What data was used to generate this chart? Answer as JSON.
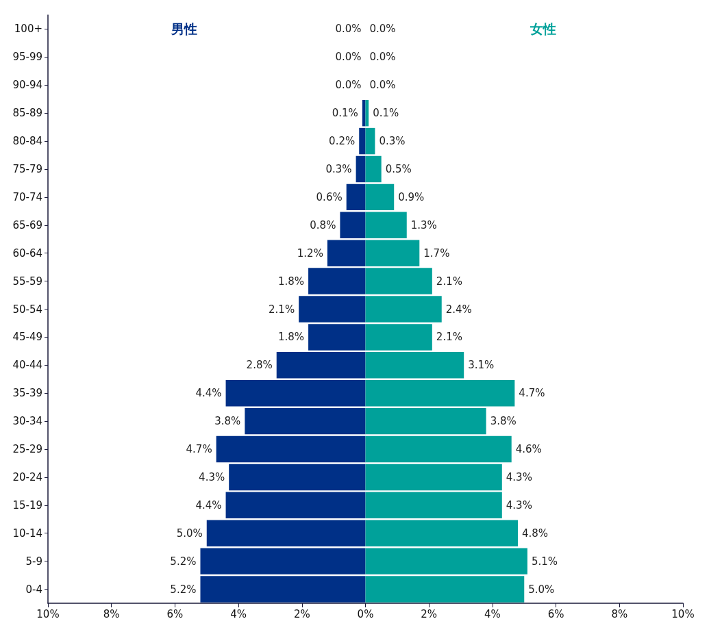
{
  "chart_data": {
    "type": "bar",
    "orientation": "horizontal",
    "categories": [
      "100+",
      "95-99",
      "90-94",
      "85-89",
      "80-84",
      "75-79",
      "70-74",
      "65-69",
      "60-64",
      "55-59",
      "50-54",
      "45-49",
      "40-44",
      "35-39",
      "30-34",
      "25-29",
      "20-24",
      "15-19",
      "10-14",
      "5-9",
      "0-4"
    ],
    "series": [
      {
        "name": "男性",
        "color": "#003087",
        "values": [
          0.0,
          0.0,
          0.0,
          0.1,
          0.2,
          0.3,
          0.6,
          0.8,
          1.2,
          1.8,
          2.1,
          1.8,
          2.8,
          4.4,
          3.8,
          4.7,
          4.3,
          4.4,
          5.0,
          5.2,
          5.2
        ],
        "base": [
          null,
          null,
          null,
          -0.1,
          -0.2,
          -0.3,
          -0.6,
          -0.8,
          -1.2,
          -1.8,
          -2.1,
          -1.8,
          -2.8,
          -4.4,
          -3.8,
          -4.7,
          -4.3,
          -4.4,
          -5.0,
          -5.2,
          -5.2
        ],
        "value_labels": [
          "0.0%",
          "0.0%",
          "0.0%",
          "0.1%",
          "0.2%",
          "0.3%",
          "0.6%",
          "0.8%",
          "1.2%",
          "1.8%",
          "2.1%",
          "1.8%",
          "2.8%",
          "4.4%",
          "3.8%",
          "4.7%",
          "4.3%",
          "4.4%",
          "5.0%",
          "5.2%",
          "5.2%"
        ]
      },
      {
        "name": "女性",
        "color": "#00a19a",
        "values": [
          0.0,
          0.0,
          0.0,
          0.1,
          0.3,
          0.5,
          0.9,
          1.3,
          1.7,
          2.1,
          2.4,
          2.1,
          3.1,
          4.7,
          3.8,
          4.6,
          4.3,
          4.3,
          4.8,
          5.1,
          5.0
        ],
        "value_labels": [
          "0.0%",
          "0.0%",
          "0.0%",
          "0.1%",
          "0.3%",
          "0.5%",
          "0.9%",
          "1.3%",
          "1.7%",
          "2.1%",
          "2.4%",
          "2.1%",
          "3.1%",
          "4.7%",
          "3.8%",
          "4.6%",
          "4.3%",
          "4.3%",
          "4.8%",
          "5.1%",
          "5.0%"
        ]
      }
    ],
    "xlim": [
      -10,
      10
    ],
    "xticks": [
      {
        "value": -10,
        "label": "10%"
      },
      {
        "value": -8,
        "label": "8%"
      },
      {
        "value": -6,
        "label": "6%"
      },
      {
        "value": -4,
        "label": "4%"
      },
      {
        "value": -2,
        "label": "2%"
      },
      {
        "value": 0,
        "label": "0%"
      },
      {
        "value": 2,
        "label": "2%"
      },
      {
        "value": 4,
        "label": "4%"
      },
      {
        "value": 6,
        "label": "6%"
      },
      {
        "value": 8,
        "label": "8%"
      },
      {
        "value": 10,
        "label": "10%"
      }
    ],
    "legend": false
  }
}
